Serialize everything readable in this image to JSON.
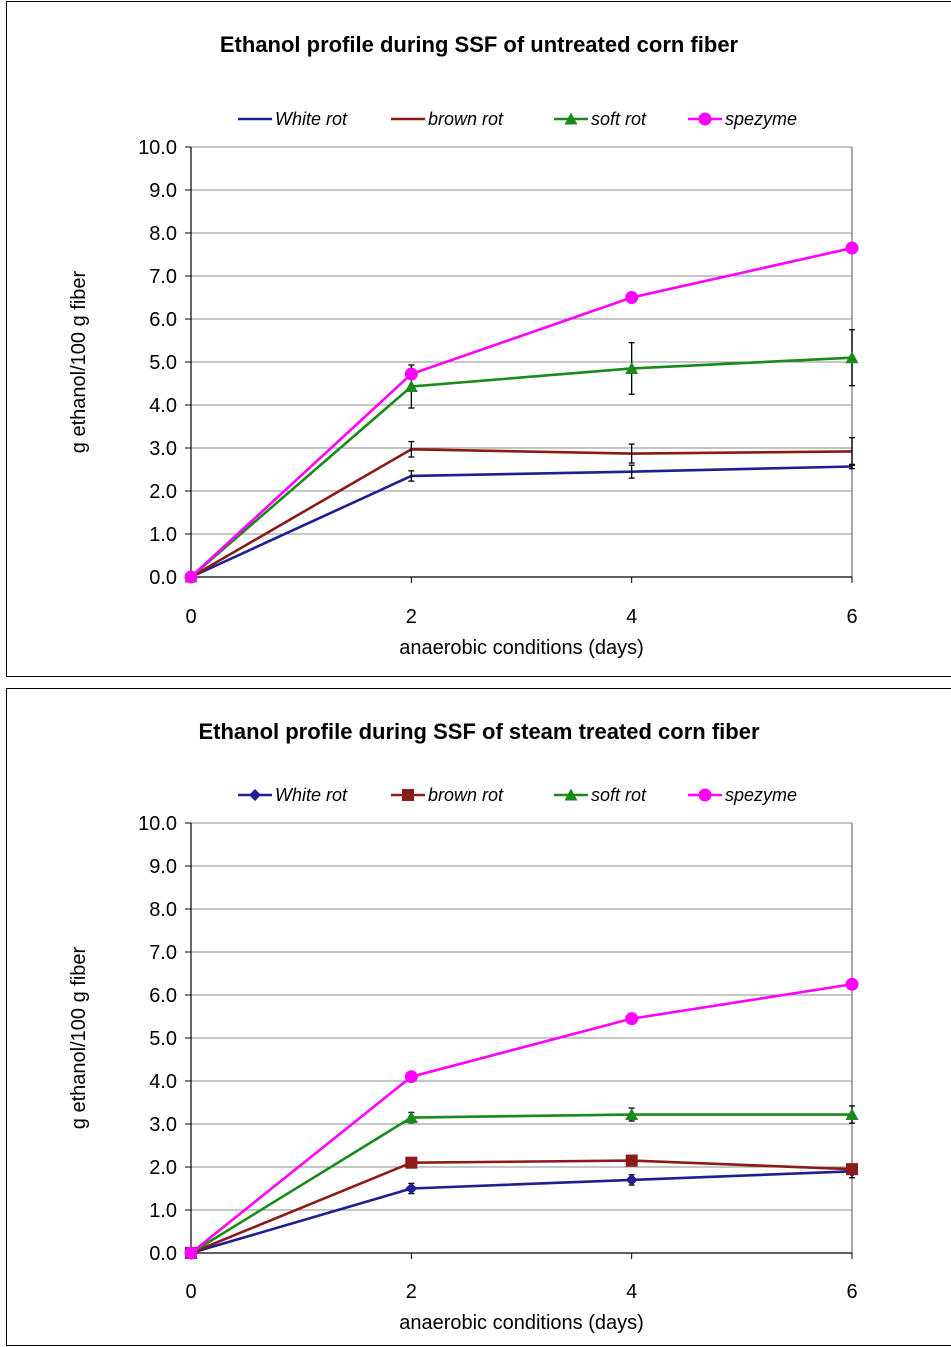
{
  "chart_data": [
    {
      "type": "line",
      "title": "Ethanol profile during SSF of untreated corn fiber",
      "xlabel": "anaerobic conditions (days)",
      "ylabel": "g ethanol/100 g fiber",
      "x": [
        0,
        2,
        4,
        6
      ],
      "xticks": [
        "0",
        "2",
        "4",
        "6"
      ],
      "ylim": [
        0,
        10
      ],
      "yticks": [
        "0.0",
        "1.0",
        "2.0",
        "3.0",
        "4.0",
        "5.0",
        "6.0",
        "7.0",
        "8.0",
        "9.0",
        "10.0"
      ],
      "grid": true,
      "legend": "top",
      "series": [
        {
          "name": "White rot",
          "color": "#1f1f8f",
          "marker": "none",
          "values": [
            0,
            2.35,
            2.45,
            2.57
          ],
          "errors": [
            0,
            0.12,
            0.15,
            0.05
          ]
        },
        {
          "name": "brown rot",
          "color": "#8b1a1a",
          "marker": "none",
          "values": [
            0,
            2.97,
            2.87,
            2.92
          ],
          "errors": [
            0,
            0.18,
            0.22,
            0.32
          ]
        },
        {
          "name": "soft rot",
          "color": "#1a8a1a",
          "marker": "triangle",
          "values": [
            0,
            4.43,
            4.85,
            5.1
          ],
          "errors": [
            0,
            0.5,
            0.6,
            0.65
          ]
        },
        {
          "name": "spezyme",
          "color": "#ff00ff",
          "marker": "circle",
          "values": [
            0,
            4.72,
            6.5,
            7.65
          ],
          "errors": [
            0,
            0.05,
            0.05,
            0.1
          ]
        }
      ]
    },
    {
      "type": "line",
      "title": "Ethanol profile during SSF of steam treated corn fiber",
      "xlabel": "anaerobic conditions (days)",
      "ylabel": "g ethanol/100 g fiber",
      "x": [
        0,
        2,
        4,
        6
      ],
      "xticks": [
        "0",
        "2",
        "4",
        "6"
      ],
      "ylim": [
        0,
        10
      ],
      "yticks": [
        "0.0",
        "1.0",
        "2.0",
        "3.0",
        "4.0",
        "5.0",
        "6.0",
        "7.0",
        "8.0",
        "9.0",
        "10.0"
      ],
      "grid": true,
      "legend": "top",
      "series": [
        {
          "name": "White rot",
          "color": "#1f1f8f",
          "marker": "diamond",
          "values": [
            0,
            1.5,
            1.7,
            1.9
          ],
          "errors": [
            0,
            0.12,
            0.12,
            0.15
          ]
        },
        {
          "name": "brown rot",
          "color": "#8b1a1a",
          "marker": "square",
          "values": [
            0,
            2.1,
            2.15,
            1.95
          ],
          "errors": [
            0,
            0.05,
            0.05,
            0.05
          ]
        },
        {
          "name": "soft rot",
          "color": "#1a8a1a",
          "marker": "triangle",
          "values": [
            0,
            3.15,
            3.22,
            3.22
          ],
          "errors": [
            0,
            0.12,
            0.15,
            0.2
          ]
        },
        {
          "name": "spezyme",
          "color": "#ff00ff",
          "marker": "circle",
          "values": [
            0,
            4.1,
            5.45,
            6.25
          ],
          "errors": [
            0,
            0.03,
            0.03,
            0.05
          ]
        }
      ]
    }
  ]
}
